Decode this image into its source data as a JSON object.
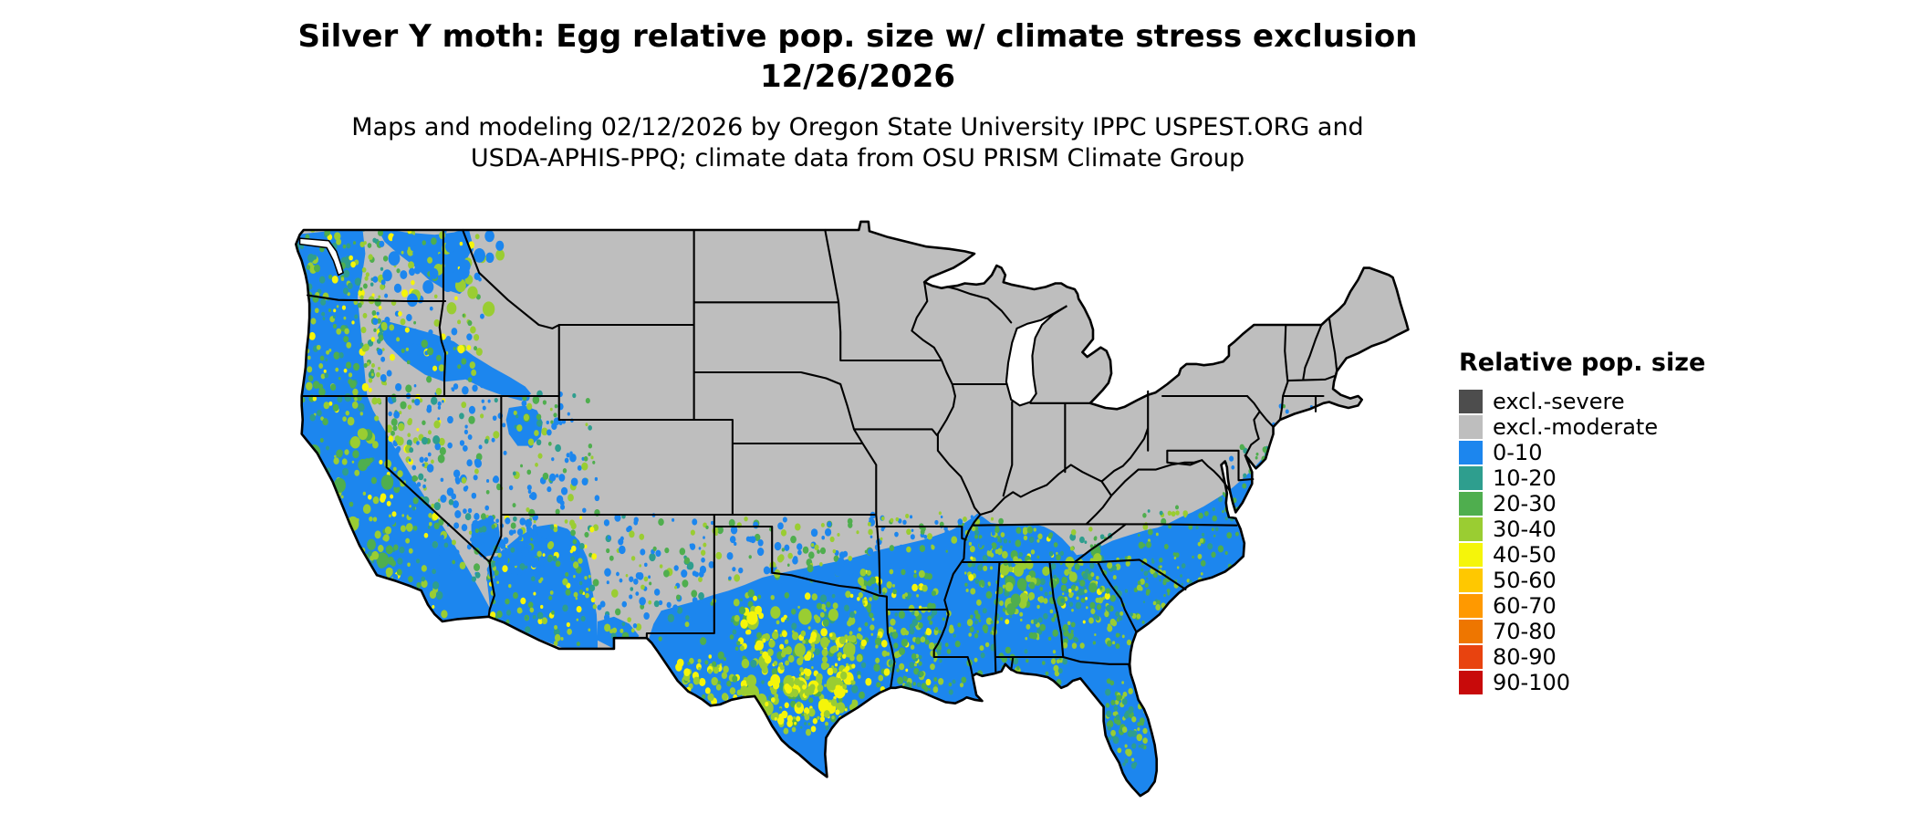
{
  "header": {
    "title_line1": "Silver Y moth: Egg relative pop. size w/ climate stress exclusion",
    "title_line2": "12/26/2026",
    "subtitle_line1": "Maps and modeling 02/12/2026 by Oregon State University IPPC USPEST.ORG and",
    "subtitle_line2": "USDA-APHIS-PPQ; climate data from OSU PRISM Climate Group"
  },
  "legend": {
    "title": "Relative pop. size",
    "items": [
      {
        "label": "excl.-severe",
        "color": "#4D4D4D"
      },
      {
        "label": "excl.-moderate",
        "color": "#BEBEBE"
      },
      {
        "label": "0-10",
        "color": "#1C86EE"
      },
      {
        "label": "10-20",
        "color": "#2E9E8E"
      },
      {
        "label": "20-30",
        "color": "#4FAE4E"
      },
      {
        "label": "30-40",
        "color": "#9ACD32"
      },
      {
        "label": "40-50",
        "color": "#F5F50A"
      },
      {
        "label": "50-60",
        "color": "#FFC800"
      },
      {
        "label": "60-70",
        "color": "#FF9900"
      },
      {
        "label": "70-80",
        "color": "#EE7600"
      },
      {
        "label": "80-90",
        "color": "#E8430F"
      },
      {
        "label": "90-100",
        "color": "#C80A0A"
      }
    ]
  }
}
